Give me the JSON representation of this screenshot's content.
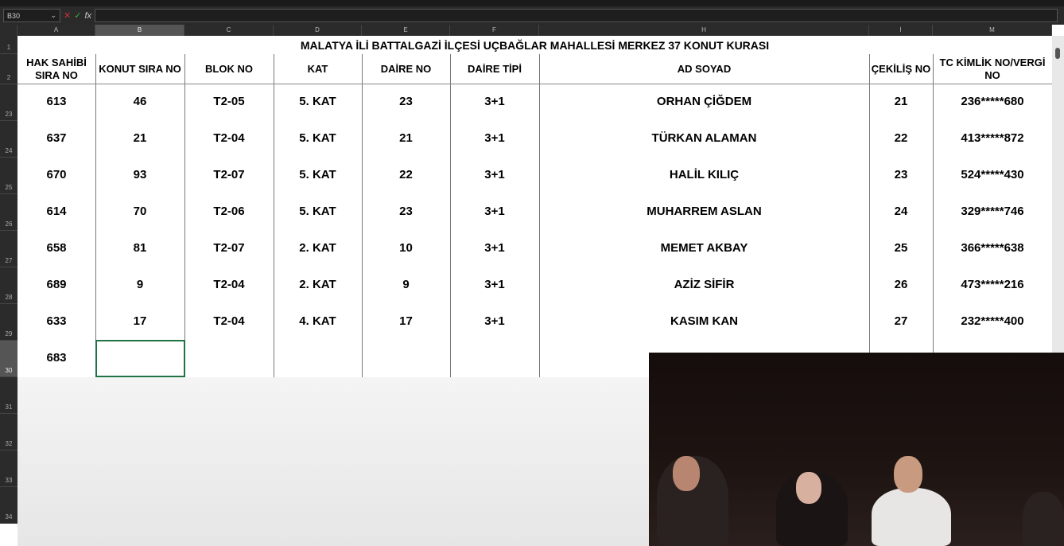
{
  "formula_bar": {
    "name_box": "B30",
    "formula": ""
  },
  "columns": [
    "A",
    "B",
    "C",
    "D",
    "E",
    "F",
    "H",
    "I",
    "M"
  ],
  "row_numbers": [
    "1",
    "2",
    "23",
    "24",
    "25",
    "26",
    "27",
    "28",
    "29",
    "30",
    "31",
    "32",
    "33",
    "34"
  ],
  "title": "MALATYA İLİ BATTALGAZİ İLÇESİ UÇBAĞLAR MAHALLESİ MERKEZ 37 KONUT KURASI",
  "headers": [
    "HAK SAHİBİ SIRA NO",
    "KONUT SIRA NO",
    "BLOK NO",
    "KAT",
    "DAİRE NO",
    "DAİRE TİPİ",
    "AD SOYAD",
    "ÇEKİLİŞ NO",
    "TC KİMLİK NO/VERGİ NO"
  ],
  "rows": [
    [
      "613",
      "46",
      "T2-05",
      "5. KAT",
      "23",
      "3+1",
      "ORHAN ÇİĞDEM",
      "21",
      "236*****680"
    ],
    [
      "637",
      "21",
      "T2-04",
      "5. KAT",
      "21",
      "3+1",
      "TÜRKAN ALAMAN",
      "22",
      "413*****872"
    ],
    [
      "670",
      "93",
      "T2-07",
      "5. KAT",
      "22",
      "3+1",
      "HALİL KILIÇ",
      "23",
      "524*****430"
    ],
    [
      "614",
      "70",
      "T2-06",
      "5. KAT",
      "23",
      "3+1",
      "MUHARREM ASLAN",
      "24",
      "329*****746"
    ],
    [
      "658",
      "81",
      "T2-07",
      "2. KAT",
      "10",
      "3+1",
      "MEMET AKBAY",
      "25",
      "366*****638"
    ],
    [
      "689",
      "9",
      "T2-04",
      "2. KAT",
      "9",
      "3+1",
      "AZİZ SİFİR",
      "26",
      "473*****216"
    ],
    [
      "633",
      "17",
      "T2-04",
      "4. KAT",
      "17",
      "3+1",
      "KASIM KAN",
      "27",
      "232*****400"
    ],
    [
      "683",
      "",
      "",
      "",
      "",
      "",
      "",
      "",
      ""
    ]
  ]
}
